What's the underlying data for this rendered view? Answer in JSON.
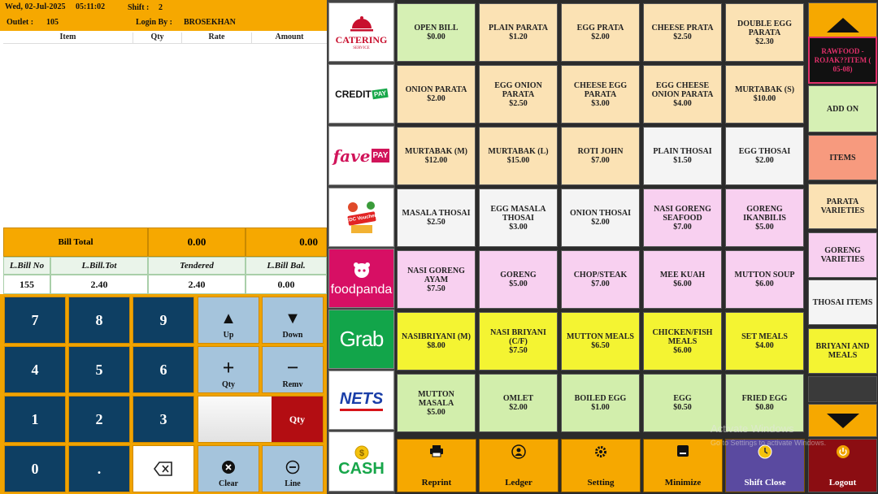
{
  "header": {
    "date": "Wed, 02-Jul-2025",
    "time": "05:11:02",
    "shift_label": "Shift :",
    "shift_value": "2",
    "outlet_label": "Outlet :",
    "outlet_value": "105",
    "login_label": "Login By :",
    "login_value": "BROSEKHAN"
  },
  "columns": [
    "Item",
    "Qty",
    "Rate",
    "Amount"
  ],
  "bill": {
    "total_label": "Bill Total",
    "total_a": "0.00",
    "total_b": "0.00",
    "last_headers": [
      "L.Bill No",
      "L.Bill.Tot",
      "Tendered",
      "L.Bill Bal."
    ],
    "last_values": [
      "155",
      "2.40",
      "2.40",
      "0.00"
    ]
  },
  "keypad": {
    "digits": [
      "7",
      "8",
      "9",
      "4",
      "5",
      "6",
      "1",
      "2",
      "3",
      "0",
      "."
    ],
    "up": "Up",
    "down": "Down",
    "qty": "Qty",
    "remv": "Remv",
    "qty_toggle": "Qty",
    "clear": "Clear",
    "line": "Line"
  },
  "payment": {
    "catering": "CATERING",
    "catering_sub": "SERVICE",
    "credit": "CREDIT",
    "credit_pay": "PAY",
    "fave": "fave",
    "fave_pay": "PAY",
    "cdc": "CDC Voucher",
    "foodpanda": "foodpanda",
    "grab": "Grab",
    "nets": "NETS",
    "cash": "CASH"
  },
  "menu_items": [
    {
      "name": "OPEN BILL",
      "price": "$0.00",
      "color": "green"
    },
    {
      "name": "PLAIN PARATA",
      "price": "$1.20",
      "color": "peach"
    },
    {
      "name": "EGG PRATA",
      "price": "$2.00",
      "color": "peach"
    },
    {
      "name": "CHEESE PRATA",
      "price": "$2.50",
      "color": "peach"
    },
    {
      "name": "DOUBLE EGG PARATA",
      "price": "$2.30",
      "color": "peach"
    },
    {
      "name": "ONION PARATA",
      "price": "$2.00",
      "color": "peach"
    },
    {
      "name": "EGG ONION PARATA",
      "price": "$2.50",
      "color": "peach"
    },
    {
      "name": "CHEESE EGG PARATA",
      "price": "$3.00",
      "color": "peach"
    },
    {
      "name": "EGG CHEESE ONION PARATA",
      "price": "$4.00",
      "color": "peach"
    },
    {
      "name": "MURTABAK (S)",
      "price": "$10.00",
      "color": "peach"
    },
    {
      "name": "MURTABAK (M)",
      "price": "$12.00",
      "color": "peach"
    },
    {
      "name": "MURTABAK (L)",
      "price": "$15.00",
      "color": "peach"
    },
    {
      "name": "ROTI JOHN",
      "price": "$7.00",
      "color": "peach"
    },
    {
      "name": "PLAIN THOSAI",
      "price": "$1.50",
      "color": "white"
    },
    {
      "name": "EGG THOSAI",
      "price": "$2.00",
      "color": "white"
    },
    {
      "name": "MASALA THOSAI",
      "price": "$2.50",
      "color": "white"
    },
    {
      "name": "EGG MASALA THOSAI",
      "price": "$3.00",
      "color": "white"
    },
    {
      "name": "ONION THOSAI",
      "price": "$2.00",
      "color": "white"
    },
    {
      "name": "NASI GORENG SEAFOOD",
      "price": "$7.00",
      "color": "pink"
    },
    {
      "name": "GORENG IKANBILIS",
      "price": "$5.00",
      "color": "pink"
    },
    {
      "name": "NASI GORENG AYAM",
      "price": "$7.50",
      "color": "pink"
    },
    {
      "name": "GORENG",
      "price": "$5.00",
      "color": "pink"
    },
    {
      "name": "CHOP/STEAK",
      "price": "$7.00",
      "color": "pink"
    },
    {
      "name": "MEE KUAH",
      "price": "$6.00",
      "color": "pink"
    },
    {
      "name": "MUTTON SOUP",
      "price": "$6.00",
      "color": "pink"
    },
    {
      "name": "NASIBRIYANI (M)",
      "price": "$8.00",
      "color": "yellow"
    },
    {
      "name": "NASI BRIYANI (C/F)",
      "price": "$7.50",
      "color": "yellow"
    },
    {
      "name": "MUTTON MEALS",
      "price": "$6.50",
      "color": "yellow"
    },
    {
      "name": "CHICKEN/FISH MEALS",
      "price": "$6.00",
      "color": "yellow"
    },
    {
      "name": "SET MEALS",
      "price": "$4.00",
      "color": "yellow"
    },
    {
      "name": "MUTTON MASALA",
      "price": "$5.00",
      "color": "lgreen"
    },
    {
      "name": "OMLET",
      "price": "$2.00",
      "color": "lgreen"
    },
    {
      "name": "BOILED EGG",
      "price": "$1.00",
      "color": "lgreen"
    },
    {
      "name": "EGG",
      "price": "$0.50",
      "color": "lgreen"
    },
    {
      "name": "FRIED EGG",
      "price": "$0.80",
      "color": "lgreen"
    }
  ],
  "bottom_bar": [
    {
      "label": "Reprint",
      "icon": "printer-icon"
    },
    {
      "label": "Ledger",
      "icon": "ledger-icon"
    },
    {
      "label": "Setting",
      "icon": "gear-icon"
    },
    {
      "label": "Minimize",
      "icon": "minimize-icon"
    },
    {
      "label": "Shift Close",
      "icon": "clock-icon"
    },
    {
      "label": "Logout",
      "icon": "power-icon"
    }
  ],
  "categories": [
    {
      "label": "RAWFOOD - ROJAK??ITEM ( 05-08)",
      "color": "black"
    },
    {
      "label": "ADD ON",
      "color": "green"
    },
    {
      "label": "ITEMS",
      "color": "salmon"
    },
    {
      "label": "PARATA VARIETIES",
      "color": "peach"
    },
    {
      "label": "GORENG VARIETIES",
      "color": "pink"
    },
    {
      "label": "THOSAI ITEMS",
      "color": "white"
    },
    {
      "label": "BRIYANI AND MEALS",
      "color": "yellow"
    }
  ],
  "watermark": {
    "title": "Activate Windows",
    "sub": "Go to Settings to activate Windows."
  },
  "colors": {
    "accent": "#f6a800",
    "keypad_blue": "#0e3f63",
    "logout_red": "#8b0d12",
    "shiftclose_purple": "#5a4aa0"
  }
}
